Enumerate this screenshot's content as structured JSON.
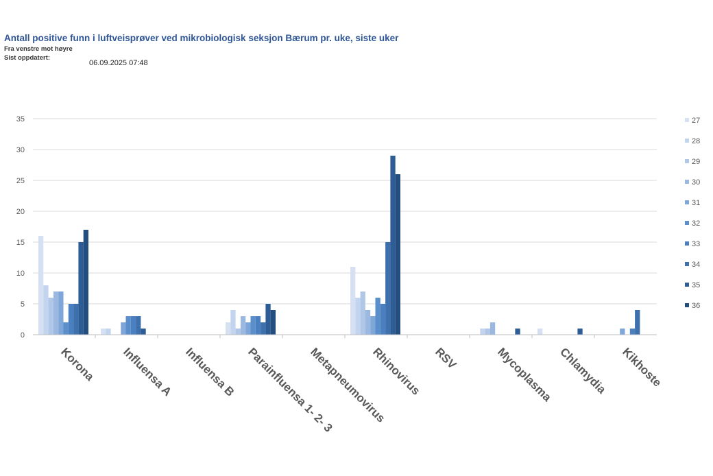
{
  "header": {
    "title": "Antall positive funn i luftveisprøver ved mikrobiologisk seksjon Bærum pr. uke, siste uker",
    "subtitle_order": "Fra venstre mot høyre",
    "updated_label": "Sist oppdatert:",
    "updated_value": "06.09.2025 07:48"
  },
  "chart_data": {
    "type": "bar",
    "title": "Antall positive funn i luftveisprøver ved mikrobiologisk seksjon Bærum pr. uke, siste uker",
    "xlabel": "",
    "ylabel": "",
    "ylim": [
      0,
      35
    ],
    "yticks": [
      0,
      5,
      10,
      15,
      20,
      25,
      30,
      35
    ],
    "grid": true,
    "legend_position": "right",
    "categories": [
      "Korona",
      "Influensa A",
      "Influensa B",
      "Parainfluensa 1- 2- 3",
      "Metapneumovirus",
      "Rhinovirus",
      "RSV",
      "Mycoplasma",
      "Chlamydia",
      "Kikhoste"
    ],
    "series": [
      {
        "name": "27",
        "color": "#d5e0f2",
        "values": [
          16,
          1,
          0,
          2,
          0,
          11,
          0,
          0,
          1,
          0
        ]
      },
      {
        "name": "28",
        "color": "#c3d4ee",
        "values": [
          8,
          1,
          0,
          4,
          0,
          6,
          0,
          1,
          0,
          0
        ]
      },
      {
        "name": "29",
        "color": "#b0c7e8",
        "values": [
          6,
          0,
          0,
          1,
          0,
          7,
          0,
          1,
          0,
          0
        ]
      },
      {
        "name": "30",
        "color": "#9bb8e0",
        "values": [
          7,
          0,
          0,
          3,
          0,
          4,
          0,
          2,
          0,
          0
        ]
      },
      {
        "name": "31",
        "color": "#7ea6d8",
        "values": [
          7,
          2,
          0,
          2,
          0,
          3,
          0,
          0,
          0,
          1
        ]
      },
      {
        "name": "32",
        "color": "#5b8fcc",
        "values": [
          2,
          3,
          0,
          3,
          0,
          6,
          0,
          0,
          0,
          0
        ]
      },
      {
        "name": "33",
        "color": "#4a7fc0",
        "values": [
          5,
          3,
          0,
          3,
          0,
          5,
          0,
          0,
          0,
          1
        ]
      },
      {
        "name": "34",
        "color": "#3e70ad",
        "values": [
          5,
          3,
          0,
          2,
          0,
          15,
          0,
          0,
          0,
          4
        ]
      },
      {
        "name": "35",
        "color": "#2e5c94",
        "values": [
          15,
          1,
          0,
          5,
          0,
          29,
          0,
          1,
          1,
          0
        ]
      },
      {
        "name": "36",
        "color": "#244e80",
        "values": [
          17,
          0,
          0,
          4,
          0,
          26,
          0,
          0,
          0,
          0
        ]
      }
    ]
  }
}
